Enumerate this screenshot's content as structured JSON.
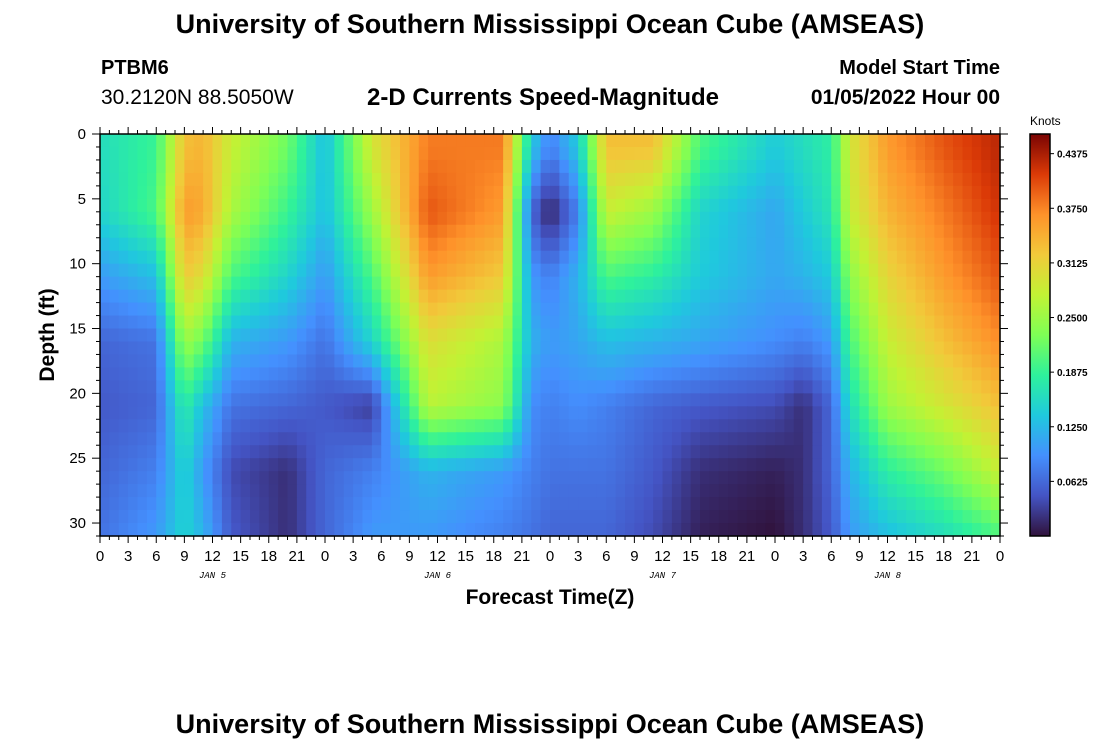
{
  "title": "University of Southern Mississippi Ocean Cube (AMSEAS)",
  "title_repeat": "University of Southern Mississippi Ocean Cube (AMSEAS)",
  "station": {
    "id": "PTBM6",
    "coords": "30.2120N  88.5050W"
  },
  "model_start": {
    "label": "Model Start Time",
    "value": "01/05/2022 Hour 00"
  },
  "chart_data": {
    "type": "heatmap",
    "title": "2-D Currents Speed-Magnitude",
    "xlabel": "Forecast Time(Z)",
    "ylabel": "Depth (ft)",
    "x_range_hours": [
      0,
      96
    ],
    "ylim": [
      0,
      31
    ],
    "x_tick_labels": [
      "0",
      "3",
      "6",
      "9",
      "12",
      "15",
      "18",
      "21",
      "0",
      "3",
      "6",
      "9",
      "12",
      "15",
      "18",
      "21",
      "0",
      "3",
      "6",
      "9",
      "12",
      "15",
      "18",
      "21",
      "0",
      "3",
      "6",
      "9",
      "12",
      "15",
      "18",
      "21",
      "0"
    ],
    "date_labels": [
      {
        "hour": 12,
        "label": "JAN 5"
      },
      {
        "hour": 36,
        "label": "JAN 6"
      },
      {
        "hour": 60,
        "label": "JAN 7"
      },
      {
        "hour": 84,
        "label": "JAN 8"
      }
    ],
    "y_ticks": [
      0,
      5,
      10,
      15,
      20,
      25,
      30
    ],
    "colorbar": {
      "unit": "Knots",
      "min": 0,
      "max": 0.46,
      "ticks": [
        "0.4375",
        "0.3750",
        "0.3125",
        "0.2500",
        "0.1875",
        "0.1250",
        "0.0625"
      ]
    },
    "depths_ft": [
      1,
      6,
      11,
      16,
      21,
      26,
      31
    ],
    "hours": [
      0,
      6,
      9,
      11,
      14,
      20,
      24,
      29,
      35,
      43,
      46,
      48,
      51,
      54,
      59,
      64,
      72,
      75,
      78,
      80,
      84,
      90,
      96
    ],
    "speed_knots": [
      [
        0.16,
        0.19,
        0.33,
        0.34,
        0.28,
        0.22,
        0.13,
        0.29,
        0.38,
        0.38,
        0.14,
        0.08,
        0.14,
        0.33,
        0.33,
        0.2,
        0.14,
        0.16,
        0.18,
        0.29,
        0.36,
        0.4,
        0.43
      ],
      [
        0.15,
        0.2,
        0.36,
        0.35,
        0.26,
        0.19,
        0.13,
        0.25,
        0.4,
        0.36,
        0.06,
        0.01,
        0.08,
        0.28,
        0.25,
        0.15,
        0.11,
        0.14,
        0.17,
        0.28,
        0.34,
        0.38,
        0.42
      ],
      [
        0.1,
        0.13,
        0.32,
        0.3,
        0.2,
        0.15,
        0.1,
        0.2,
        0.36,
        0.32,
        0.1,
        0.08,
        0.12,
        0.2,
        0.18,
        0.14,
        0.11,
        0.12,
        0.14,
        0.24,
        0.31,
        0.36,
        0.4
      ],
      [
        0.06,
        0.07,
        0.25,
        0.22,
        0.12,
        0.1,
        0.07,
        0.15,
        0.3,
        0.26,
        0.12,
        0.1,
        0.11,
        0.13,
        0.12,
        0.11,
        0.09,
        0.08,
        0.1,
        0.2,
        0.28,
        0.33,
        0.37
      ],
      [
        0.05,
        0.06,
        0.18,
        0.13,
        0.07,
        0.06,
        0.05,
        0.03,
        0.27,
        0.24,
        0.09,
        0.08,
        0.09,
        0.08,
        0.06,
        0.05,
        0.04,
        0.02,
        0.06,
        0.16,
        0.25,
        0.29,
        0.33
      ],
      [
        0.06,
        0.08,
        0.15,
        0.1,
        0.04,
        0.02,
        0.06,
        0.08,
        0.12,
        0.1,
        0.08,
        0.07,
        0.07,
        0.07,
        0.05,
        0.02,
        0.01,
        0.02,
        0.06,
        0.12,
        0.18,
        0.22,
        0.28
      ],
      [
        0.07,
        0.1,
        0.15,
        0.12,
        0.05,
        0.02,
        0.06,
        0.1,
        0.1,
        0.08,
        0.07,
        0.06,
        0.06,
        0.06,
        0.04,
        0.01,
        0.0,
        0.02,
        0.05,
        0.1,
        0.13,
        0.16,
        0.2
      ]
    ]
  }
}
